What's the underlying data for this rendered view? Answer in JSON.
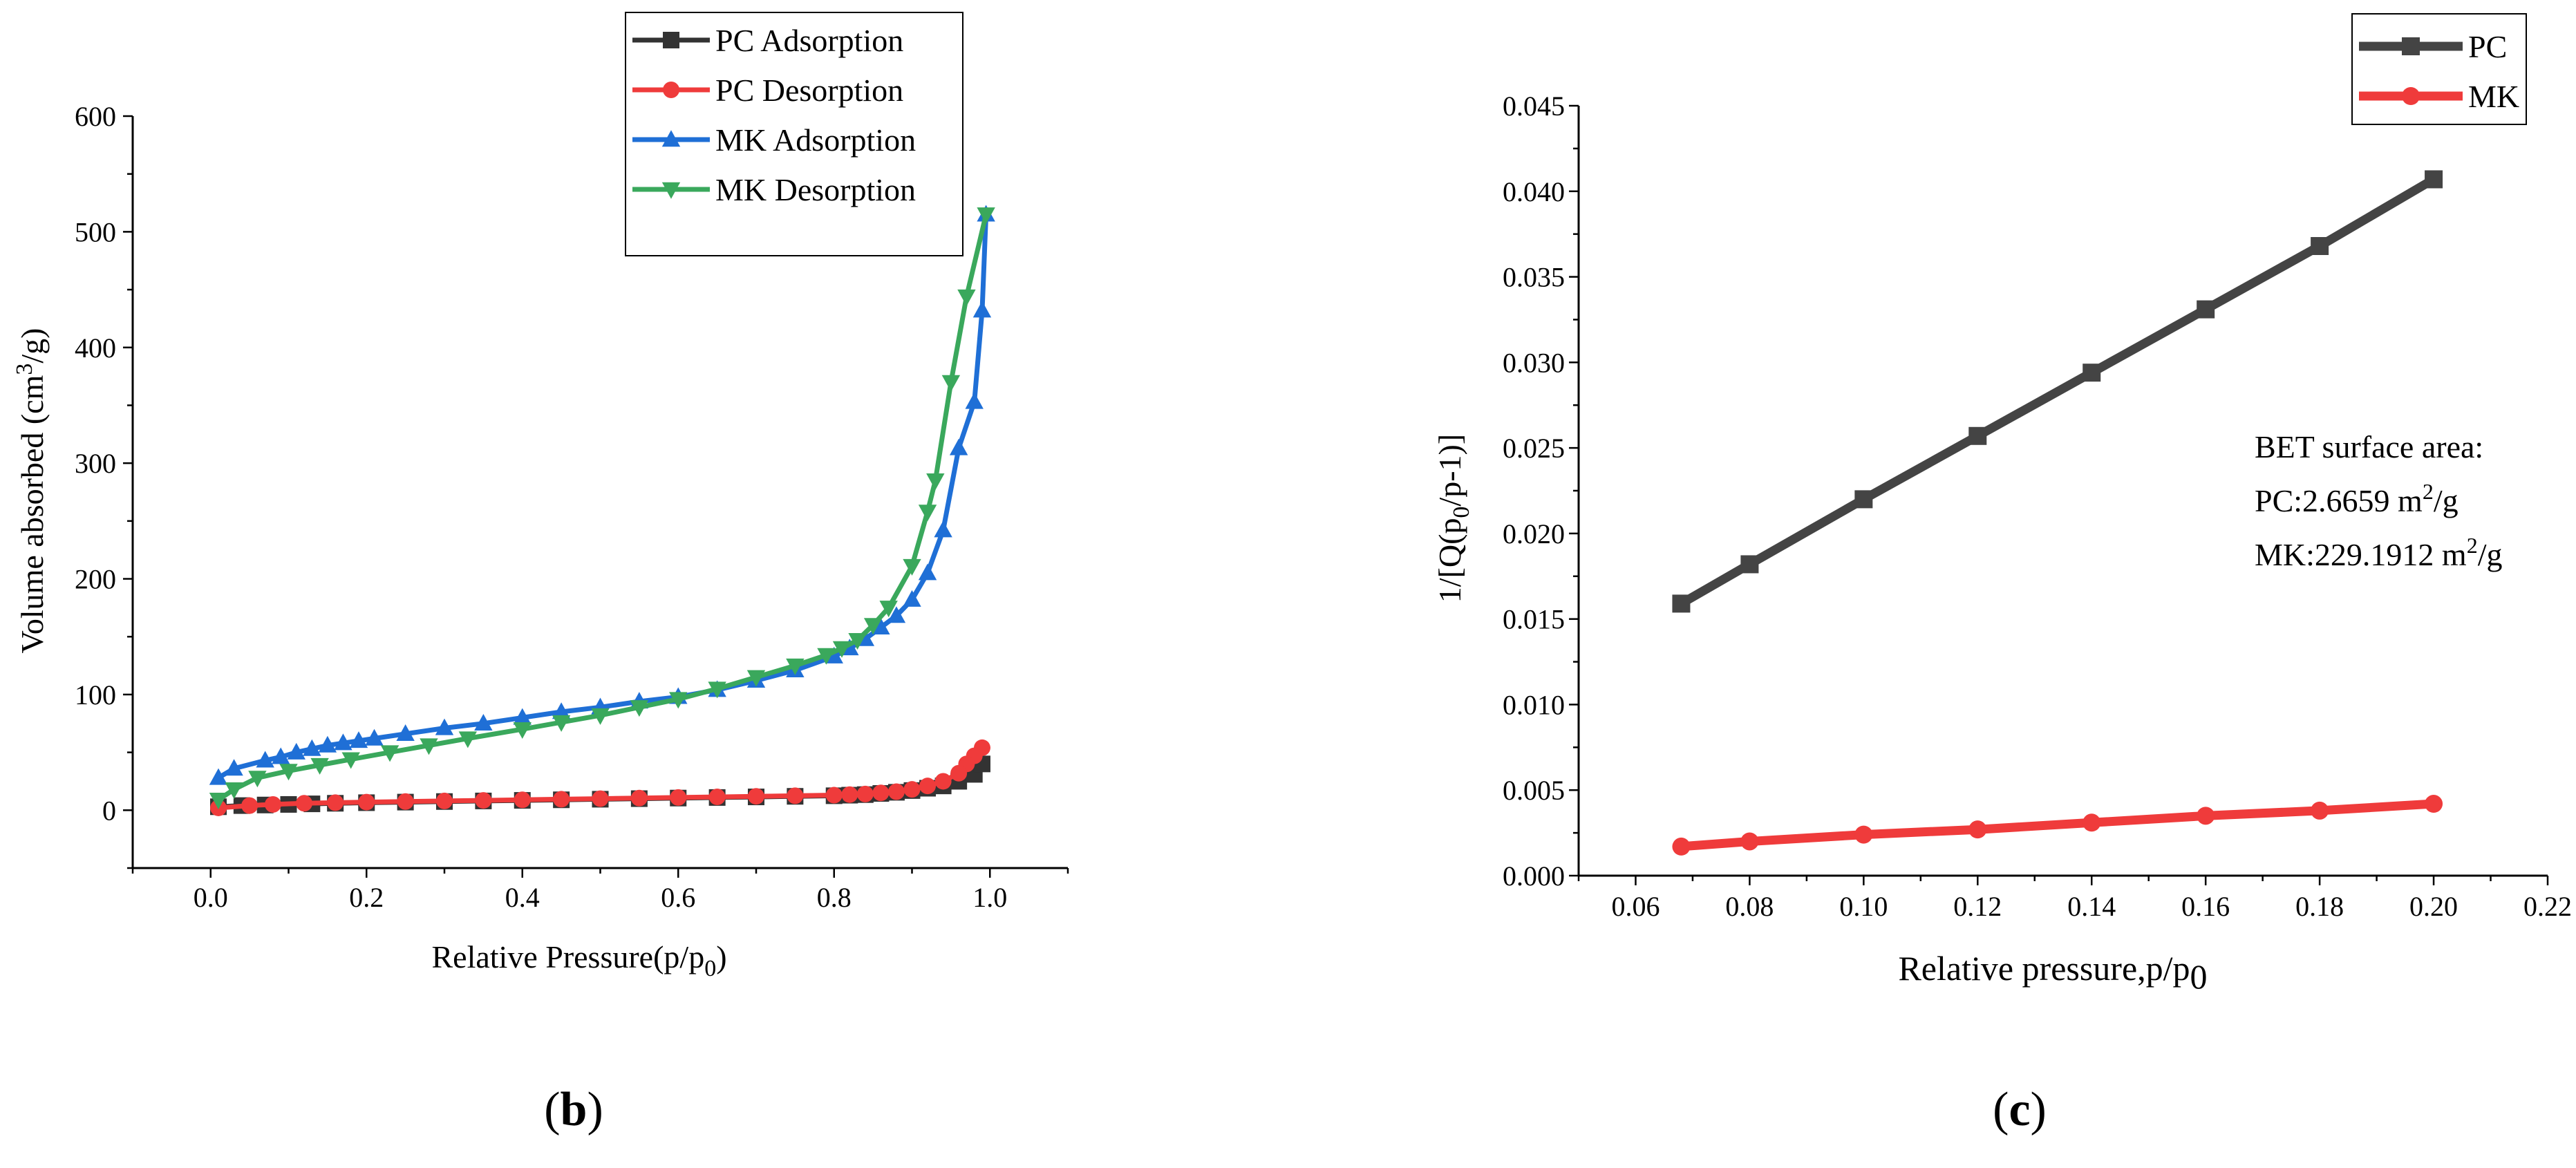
{
  "colors": {
    "pc_adsorption": "#333333",
    "pc_desorption": "#ef3b3b",
    "mk_adsorption": "#1f6fd6",
    "mk_desorption": "#3aa85c",
    "bet_pc": "#444444",
    "bet_mk": "#ef3b3b"
  },
  "chart_data": [
    {
      "id": "b",
      "panel_label": "b",
      "type": "line",
      "title": "",
      "xlabel": "Relative Pressure(p/p",
      "xlabel_sub": "0",
      "xlabel_end": ")",
      "ylabel": "Volume absorbed (cm",
      "ylabel_sup": "3",
      "ylabel_end": "/g)",
      "xlim": [
        -0.1,
        1.1
      ],
      "ylim": [
        -50,
        600
      ],
      "xticks": [
        0.0,
        0.2,
        0.4,
        0.6,
        0.8,
        1.0
      ],
      "xtick_labels": [
        "0.0",
        "0.2",
        "0.4",
        "0.6",
        "0.8",
        "1.0"
      ],
      "yticks": [
        0,
        100,
        200,
        300,
        400,
        500,
        600
      ],
      "ytick_labels": [
        "0",
        "100",
        "200",
        "300",
        "400",
        "500",
        "600"
      ],
      "grid": false,
      "legend_position": "top-right",
      "series": [
        {
          "name": "PC Adsorption",
          "marker": "square",
          "color_key": "pc_adsorption",
          "x": [
            0.01,
            0.04,
            0.07,
            0.1,
            0.13,
            0.16,
            0.2,
            0.25,
            0.3,
            0.35,
            0.4,
            0.45,
            0.5,
            0.55,
            0.6,
            0.65,
            0.7,
            0.75,
            0.8,
            0.82,
            0.84,
            0.86,
            0.88,
            0.9,
            0.92,
            0.94,
            0.96,
            0.98,
            0.99
          ],
          "y": [
            3,
            4,
            4.5,
            5,
            5.5,
            6,
            6.5,
            7,
            7.5,
            8,
            8.5,
            9,
            9.5,
            10,
            10.5,
            11,
            11.5,
            12,
            12.5,
            13,
            13.5,
            14.5,
            15.5,
            17,
            19,
            21,
            25,
            31,
            40
          ]
        },
        {
          "name": "PC Desorption",
          "marker": "circle",
          "color_key": "pc_desorption",
          "x": [
            0.99,
            0.98,
            0.97,
            0.96,
            0.94,
            0.92,
            0.9,
            0.88,
            0.86,
            0.84,
            0.82,
            0.8,
            0.75,
            0.7,
            0.65,
            0.6,
            0.55,
            0.5,
            0.45,
            0.4,
            0.35,
            0.3,
            0.25,
            0.2,
            0.16,
            0.12,
            0.08,
            0.05,
            0.01
          ],
          "y": [
            54,
            47,
            40,
            32,
            25,
            21,
            18,
            16,
            15,
            14,
            13.5,
            13,
            12.5,
            12,
            11.5,
            11,
            10.5,
            10,
            9.5,
            9,
            8.5,
            8,
            7.5,
            7,
            6.5,
            6,
            5,
            4,
            2
          ]
        },
        {
          "name": "MK Adsorption",
          "marker": "triangle-up",
          "color_key": "mk_adsorption",
          "x": [
            0.01,
            0.03,
            0.07,
            0.09,
            0.11,
            0.13,
            0.15,
            0.17,
            0.19,
            0.21,
            0.25,
            0.3,
            0.35,
            0.4,
            0.45,
            0.5,
            0.55,
            0.6,
            0.65,
            0.7,
            0.75,
            0.8,
            0.82,
            0.84,
            0.86,
            0.88,
            0.9,
            0.92,
            0.94,
            0.96,
            0.98,
            0.99,
            0.995
          ],
          "y": [
            28,
            36,
            43,
            46,
            50,
            53,
            56,
            58,
            60,
            62,
            66,
            71,
            75,
            80,
            85,
            89,
            94,
            98,
            104,
            112,
            121,
            133,
            140,
            148,
            158,
            168,
            182,
            205,
            242,
            313,
            353,
            432,
            515
          ]
        },
        {
          "name": "MK Desorption",
          "marker": "triangle-down",
          "color_key": "mk_desorption",
          "x": [
            0.995,
            0.97,
            0.95,
            0.93,
            0.92,
            0.9,
            0.87,
            0.85,
            0.83,
            0.81,
            0.79,
            0.75,
            0.7,
            0.65,
            0.6,
            0.55,
            0.5,
            0.45,
            0.4,
            0.33,
            0.28,
            0.23,
            0.18,
            0.14,
            0.1,
            0.06,
            0.03,
            0.01
          ],
          "y": [
            515,
            444,
            370,
            285,
            258,
            211,
            175,
            160,
            147,
            140,
            134,
            125,
            115,
            105,
            96,
            89,
            82,
            76,
            70,
            62,
            56,
            50,
            44,
            39,
            34,
            28,
            18,
            9
          ]
        }
      ]
    },
    {
      "id": "c",
      "panel_label": "c",
      "type": "line",
      "title": "",
      "xlabel": "Relative pressure,p/p",
      "xlabel_sub": "0",
      "ylabel": "1/[Q(p",
      "ylabel_sub": "0",
      "ylabel_end": "/p-1)]",
      "xlim": [
        0.05,
        0.22
      ],
      "ylim": [
        0.0,
        0.045
      ],
      "xticks": [
        0.06,
        0.08,
        0.1,
        0.12,
        0.14,
        0.16,
        0.18,
        0.2,
        0.22
      ],
      "xtick_labels": [
        "0.06",
        "0.08",
        "0.10",
        "0.12",
        "0.14",
        "0.16",
        "0.18",
        "0.20",
        "0.22"
      ],
      "yticks": [
        0.0,
        0.005,
        0.01,
        0.015,
        0.02,
        0.025,
        0.03,
        0.035,
        0.04,
        0.045
      ],
      "ytick_labels": [
        "0.000",
        "0.005",
        "0.010",
        "0.015",
        "0.020",
        "0.025",
        "0.030",
        "0.035",
        "0.040",
        "0.045"
      ],
      "grid": false,
      "legend_position": "top-right",
      "annotation": {
        "line1": "BET surface area:",
        "line2_prefix": "PC:2.6659 m",
        "line2_sup": "2",
        "line2_suffix": "/g",
        "line3_prefix": "MK:229.1912 m",
        "line3_sup": "2",
        "line3_suffix": "/g"
      },
      "series": [
        {
          "name": "PC",
          "marker": "square",
          "color_key": "bet_pc",
          "x": [
            0.068,
            0.08,
            0.1,
            0.12,
            0.14,
            0.16,
            0.18,
            0.2
          ],
          "y": [
            0.0159,
            0.0182,
            0.022,
            0.0257,
            0.0294,
            0.0331,
            0.0368,
            0.0407
          ]
        },
        {
          "name": "MK",
          "marker": "circle",
          "color_key": "bet_mk",
          "x": [
            0.068,
            0.08,
            0.1,
            0.12,
            0.14,
            0.16,
            0.18,
            0.2
          ],
          "y": [
            0.0017,
            0.002,
            0.0024,
            0.0027,
            0.0031,
            0.0035,
            0.0038,
            0.0042
          ]
        }
      ]
    }
  ]
}
